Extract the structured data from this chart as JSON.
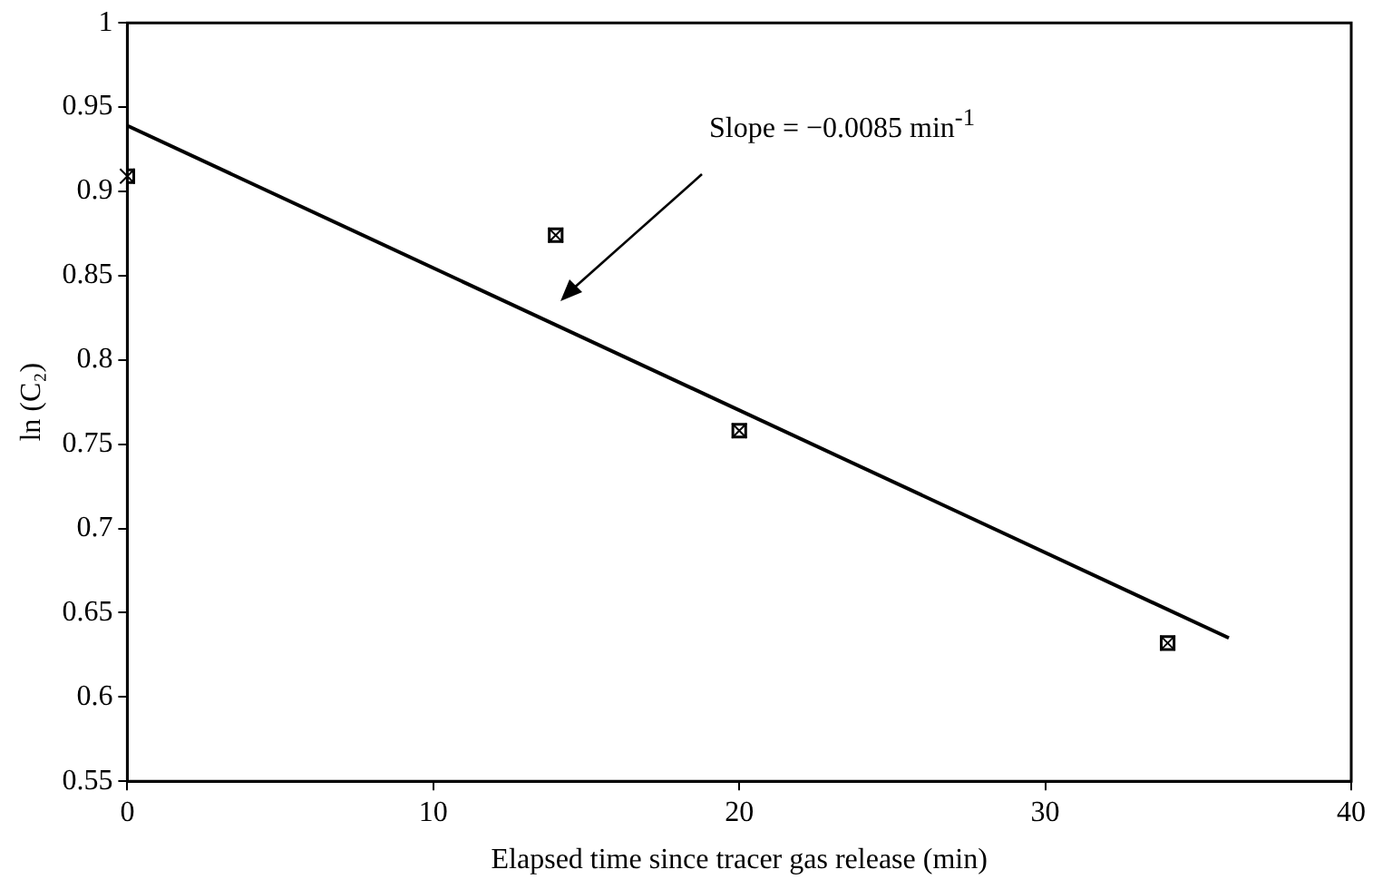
{
  "chart_data": {
    "type": "scatter",
    "xlabel": "Elapsed time since tracer gas release (min)",
    "ylabel": "ln (C₂)",
    "series": [
      {
        "type": "scatter",
        "x": [
          0,
          14,
          20,
          34
        ],
        "values": [
          0.909,
          0.874,
          0.758,
          0.632
        ],
        "color": "#000000",
        "marker": "square"
      },
      {
        "type": "line",
        "x": [
          0,
          36
        ],
        "values": [
          0.939,
          0.635
        ],
        "color": "#000000",
        "marker": "none",
        "line_style": "solid"
      }
    ],
    "annotations": [
      "Slope = −0.0085 min$^{-1}$"
    ],
    "xlim": [
      0,
      40
    ],
    "xticks": [
      0,
      10,
      20,
      30,
      40
    ],
    "ylim": [
      0.55,
      1
    ],
    "yticks": [
      0.55,
      0.6,
      0.65,
      0.7,
      0.75,
      0.8,
      0.85,
      0.9,
      0.95,
      1
    ],
    "grid": false,
    "legend": false
  }
}
